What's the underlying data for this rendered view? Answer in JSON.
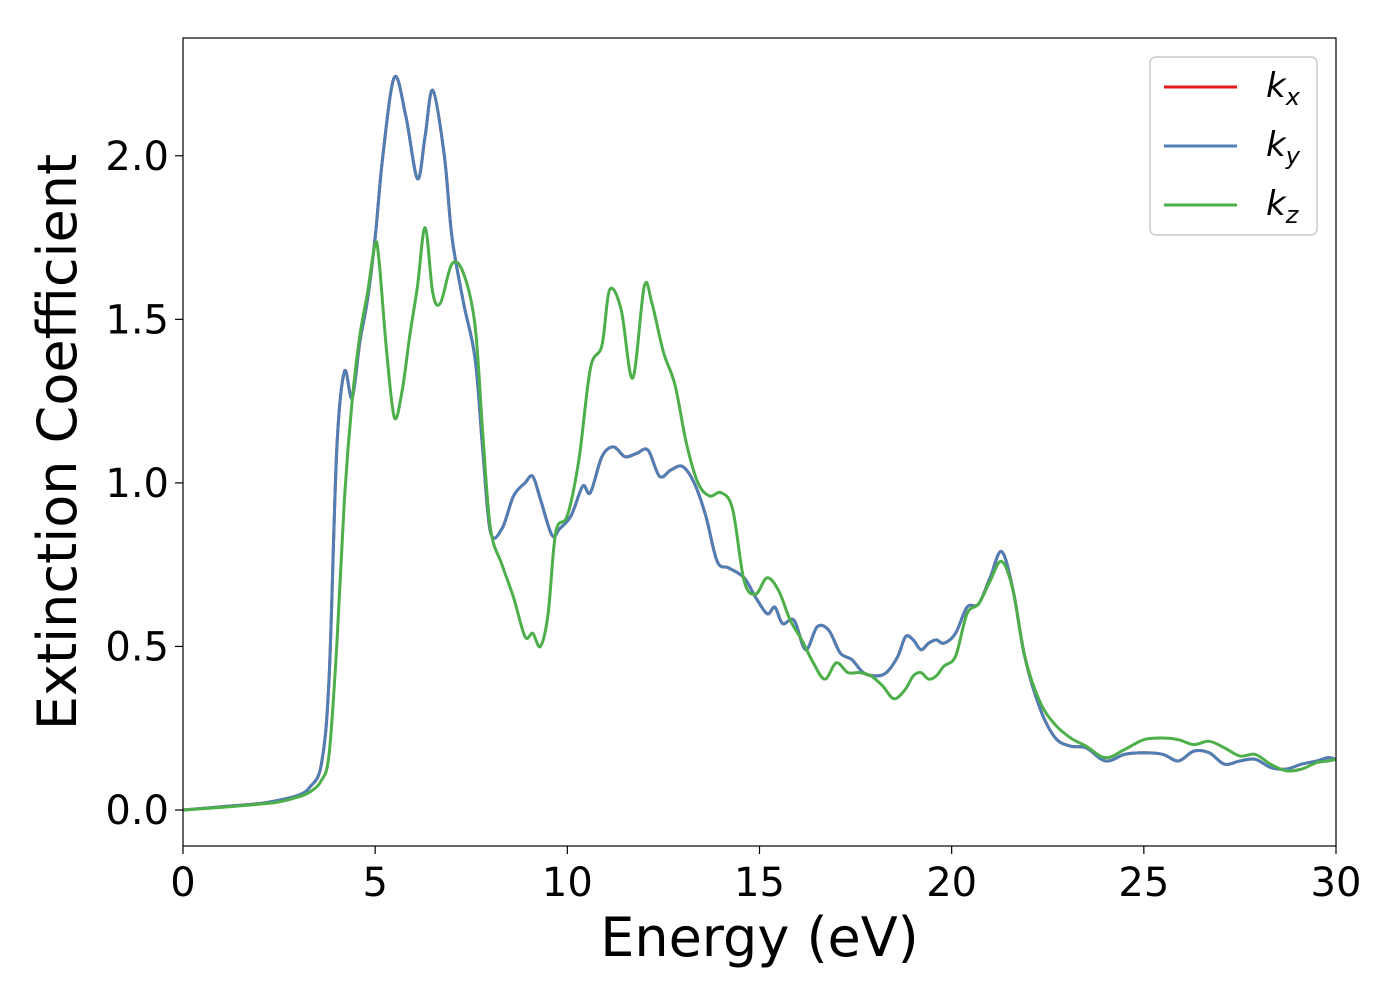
{
  "chart_data": {
    "type": "line",
    "title": "",
    "xlabel": "Energy (eV)",
    "ylabel": "Extinction Coefficient",
    "xlim": [
      0,
      30
    ],
    "ylim": [
      -0.11,
      2.36
    ],
    "xticks": [
      0,
      5,
      10,
      15,
      20,
      25,
      30
    ],
    "xtick_labels": [
      "0",
      "5",
      "10",
      "15",
      "20",
      "25",
      "30"
    ],
    "yticks": [
      0.0,
      0.5,
      1.0,
      1.5,
      2.0
    ],
    "ytick_labels": [
      "0.0",
      "0.5",
      "1.0",
      "1.5",
      "2.0"
    ],
    "grid": false,
    "legend_position": "top-right",
    "series": [
      {
        "name": "k_x",
        "label_base": "k",
        "label_sub": "x",
        "color": "#e41a1c",
        "x": [
          0,
          1,
          2,
          2.5,
          3,
          3.3,
          3.6,
          3.8,
          4.0,
          4.2,
          4.4,
          4.6,
          4.8,
          5.0,
          5.2,
          5.5,
          5.8,
          6.1,
          6.3,
          6.5,
          6.8,
          7.0,
          7.3,
          7.6,
          7.8,
          8.0,
          8.3,
          8.6,
          8.9,
          9.1,
          9.3,
          9.6,
          9.8,
          10.1,
          10.4,
          10.6,
          10.9,
          11.2,
          11.5,
          11.8,
          12.1,
          12.4,
          12.7,
          13.0,
          13.3,
          13.6,
          13.9,
          14.2,
          14.6,
          14.9,
          15.2,
          15.4,
          15.6,
          15.9,
          16.2,
          16.5,
          16.8,
          17.1,
          17.4,
          17.7,
          18.0,
          18.3,
          18.6,
          18.8,
          19.0,
          19.2,
          19.4,
          19.6,
          19.8,
          20.1,
          20.4,
          20.7,
          21.0,
          21.3,
          21.6,
          21.9,
          22.3,
          22.7,
          23.1,
          23.5,
          24.0,
          24.5,
          25.0,
          25.5,
          25.9,
          26.3,
          26.7,
          27.1,
          27.5,
          27.9,
          28.3,
          28.7,
          29.1,
          29.5,
          29.8,
          30.0
        ],
        "y": [
          0.0,
          0.01,
          0.02,
          0.03,
          0.045,
          0.07,
          0.14,
          0.4,
          1.1,
          1.34,
          1.26,
          1.43,
          1.56,
          1.75,
          2.0,
          2.24,
          2.12,
          1.93,
          2.06,
          2.2,
          2.0,
          1.75,
          1.55,
          1.38,
          1.1,
          0.85,
          0.86,
          0.96,
          1.0,
          1.02,
          0.95,
          0.84,
          0.86,
          0.9,
          0.99,
          0.97,
          1.08,
          1.11,
          1.08,
          1.09,
          1.1,
          1.02,
          1.04,
          1.05,
          1.0,
          0.9,
          0.76,
          0.74,
          0.71,
          0.65,
          0.6,
          0.62,
          0.57,
          0.58,
          0.49,
          0.56,
          0.55,
          0.48,
          0.46,
          0.42,
          0.41,
          0.42,
          0.47,
          0.53,
          0.52,
          0.49,
          0.51,
          0.52,
          0.51,
          0.54,
          0.62,
          0.63,
          0.71,
          0.79,
          0.67,
          0.47,
          0.31,
          0.22,
          0.195,
          0.19,
          0.15,
          0.17,
          0.175,
          0.17,
          0.15,
          0.18,
          0.175,
          0.14,
          0.15,
          0.155,
          0.13,
          0.125,
          0.14,
          0.15,
          0.16,
          0.155
        ]
      },
      {
        "name": "k_y",
        "label_base": "k",
        "label_sub": "y",
        "color": "#4e7fb5",
        "x": [
          0,
          1,
          2,
          2.5,
          3,
          3.3,
          3.6,
          3.8,
          4.0,
          4.2,
          4.4,
          4.6,
          4.8,
          5.0,
          5.2,
          5.5,
          5.8,
          6.1,
          6.3,
          6.5,
          6.8,
          7.0,
          7.3,
          7.6,
          7.8,
          8.0,
          8.3,
          8.6,
          8.9,
          9.1,
          9.3,
          9.6,
          9.8,
          10.1,
          10.4,
          10.6,
          10.9,
          11.2,
          11.5,
          11.8,
          12.1,
          12.4,
          12.7,
          13.0,
          13.3,
          13.6,
          13.9,
          14.2,
          14.6,
          14.9,
          15.2,
          15.4,
          15.6,
          15.9,
          16.2,
          16.5,
          16.8,
          17.1,
          17.4,
          17.7,
          18.0,
          18.3,
          18.6,
          18.8,
          19.0,
          19.2,
          19.4,
          19.6,
          19.8,
          20.1,
          20.4,
          20.7,
          21.0,
          21.3,
          21.6,
          21.9,
          22.3,
          22.7,
          23.1,
          23.5,
          24.0,
          24.5,
          25.0,
          25.5,
          25.9,
          26.3,
          26.7,
          27.1,
          27.5,
          27.9,
          28.3,
          28.7,
          29.1,
          29.5,
          29.8,
          30.0
        ],
        "y": [
          0.0,
          0.01,
          0.02,
          0.03,
          0.045,
          0.07,
          0.14,
          0.4,
          1.1,
          1.34,
          1.26,
          1.43,
          1.56,
          1.75,
          2.0,
          2.24,
          2.12,
          1.93,
          2.06,
          2.2,
          2.0,
          1.75,
          1.55,
          1.38,
          1.1,
          0.85,
          0.86,
          0.96,
          1.0,
          1.02,
          0.95,
          0.84,
          0.86,
          0.9,
          0.99,
          0.97,
          1.08,
          1.11,
          1.08,
          1.09,
          1.1,
          1.02,
          1.04,
          1.05,
          1.0,
          0.9,
          0.76,
          0.74,
          0.71,
          0.65,
          0.6,
          0.62,
          0.57,
          0.58,
          0.49,
          0.56,
          0.55,
          0.48,
          0.46,
          0.42,
          0.41,
          0.42,
          0.47,
          0.53,
          0.52,
          0.49,
          0.51,
          0.52,
          0.51,
          0.54,
          0.62,
          0.63,
          0.71,
          0.79,
          0.67,
          0.47,
          0.31,
          0.22,
          0.195,
          0.19,
          0.15,
          0.17,
          0.175,
          0.17,
          0.15,
          0.18,
          0.175,
          0.14,
          0.15,
          0.155,
          0.13,
          0.125,
          0.14,
          0.15,
          0.16,
          0.155
        ]
      },
      {
        "name": "k_z",
        "label_base": "k",
        "label_sub": "z",
        "color": "#4daf4a",
        "x": [
          0,
          1,
          2,
          2.5,
          3,
          3.3,
          3.6,
          3.8,
          4.0,
          4.2,
          4.4,
          4.6,
          4.8,
          5.0,
          5.1,
          5.3,
          5.5,
          5.7,
          5.9,
          6.1,
          6.3,
          6.5,
          6.7,
          7.0,
          7.3,
          7.6,
          7.8,
          8.0,
          8.3,
          8.6,
          8.9,
          9.1,
          9.3,
          9.5,
          9.7,
          10.0,
          10.3,
          10.6,
          10.9,
          11.1,
          11.4,
          11.7,
          12.0,
          12.2,
          12.5,
          12.8,
          13.1,
          13.4,
          13.7,
          14.0,
          14.3,
          14.6,
          14.9,
          15.2,
          15.5,
          15.8,
          16.1,
          16.4,
          16.7,
          17.0,
          17.3,
          17.6,
          17.9,
          18.2,
          18.5,
          18.8,
          19.0,
          19.2,
          19.4,
          19.6,
          19.8,
          20.1,
          20.4,
          20.7,
          21.0,
          21.3,
          21.6,
          21.9,
          22.3,
          22.7,
          23.1,
          23.5,
          24.0,
          24.5,
          25.0,
          25.5,
          25.9,
          26.3,
          26.7,
          27.1,
          27.5,
          27.9,
          28.3,
          28.7,
          29.1,
          29.5,
          29.8,
          30.0
        ],
        "y": [
          0.0,
          0.008,
          0.018,
          0.025,
          0.04,
          0.055,
          0.09,
          0.17,
          0.5,
          0.95,
          1.25,
          1.45,
          1.58,
          1.73,
          1.68,
          1.4,
          1.2,
          1.28,
          1.45,
          1.6,
          1.78,
          1.58,
          1.55,
          1.67,
          1.64,
          1.48,
          1.15,
          0.86,
          0.75,
          0.65,
          0.53,
          0.54,
          0.5,
          0.6,
          0.85,
          0.9,
          1.07,
          1.35,
          1.42,
          1.59,
          1.53,
          1.32,
          1.6,
          1.55,
          1.4,
          1.3,
          1.12,
          1.0,
          0.96,
          0.97,
          0.92,
          0.7,
          0.66,
          0.71,
          0.67,
          0.58,
          0.52,
          0.45,
          0.4,
          0.45,
          0.42,
          0.42,
          0.41,
          0.38,
          0.34,
          0.37,
          0.41,
          0.42,
          0.4,
          0.41,
          0.44,
          0.47,
          0.6,
          0.63,
          0.7,
          0.76,
          0.67,
          0.47,
          0.33,
          0.26,
          0.22,
          0.195,
          0.16,
          0.185,
          0.215,
          0.22,
          0.215,
          0.2,
          0.21,
          0.19,
          0.165,
          0.17,
          0.14,
          0.12,
          0.125,
          0.145,
          0.15,
          0.155
        ]
      }
    ]
  }
}
